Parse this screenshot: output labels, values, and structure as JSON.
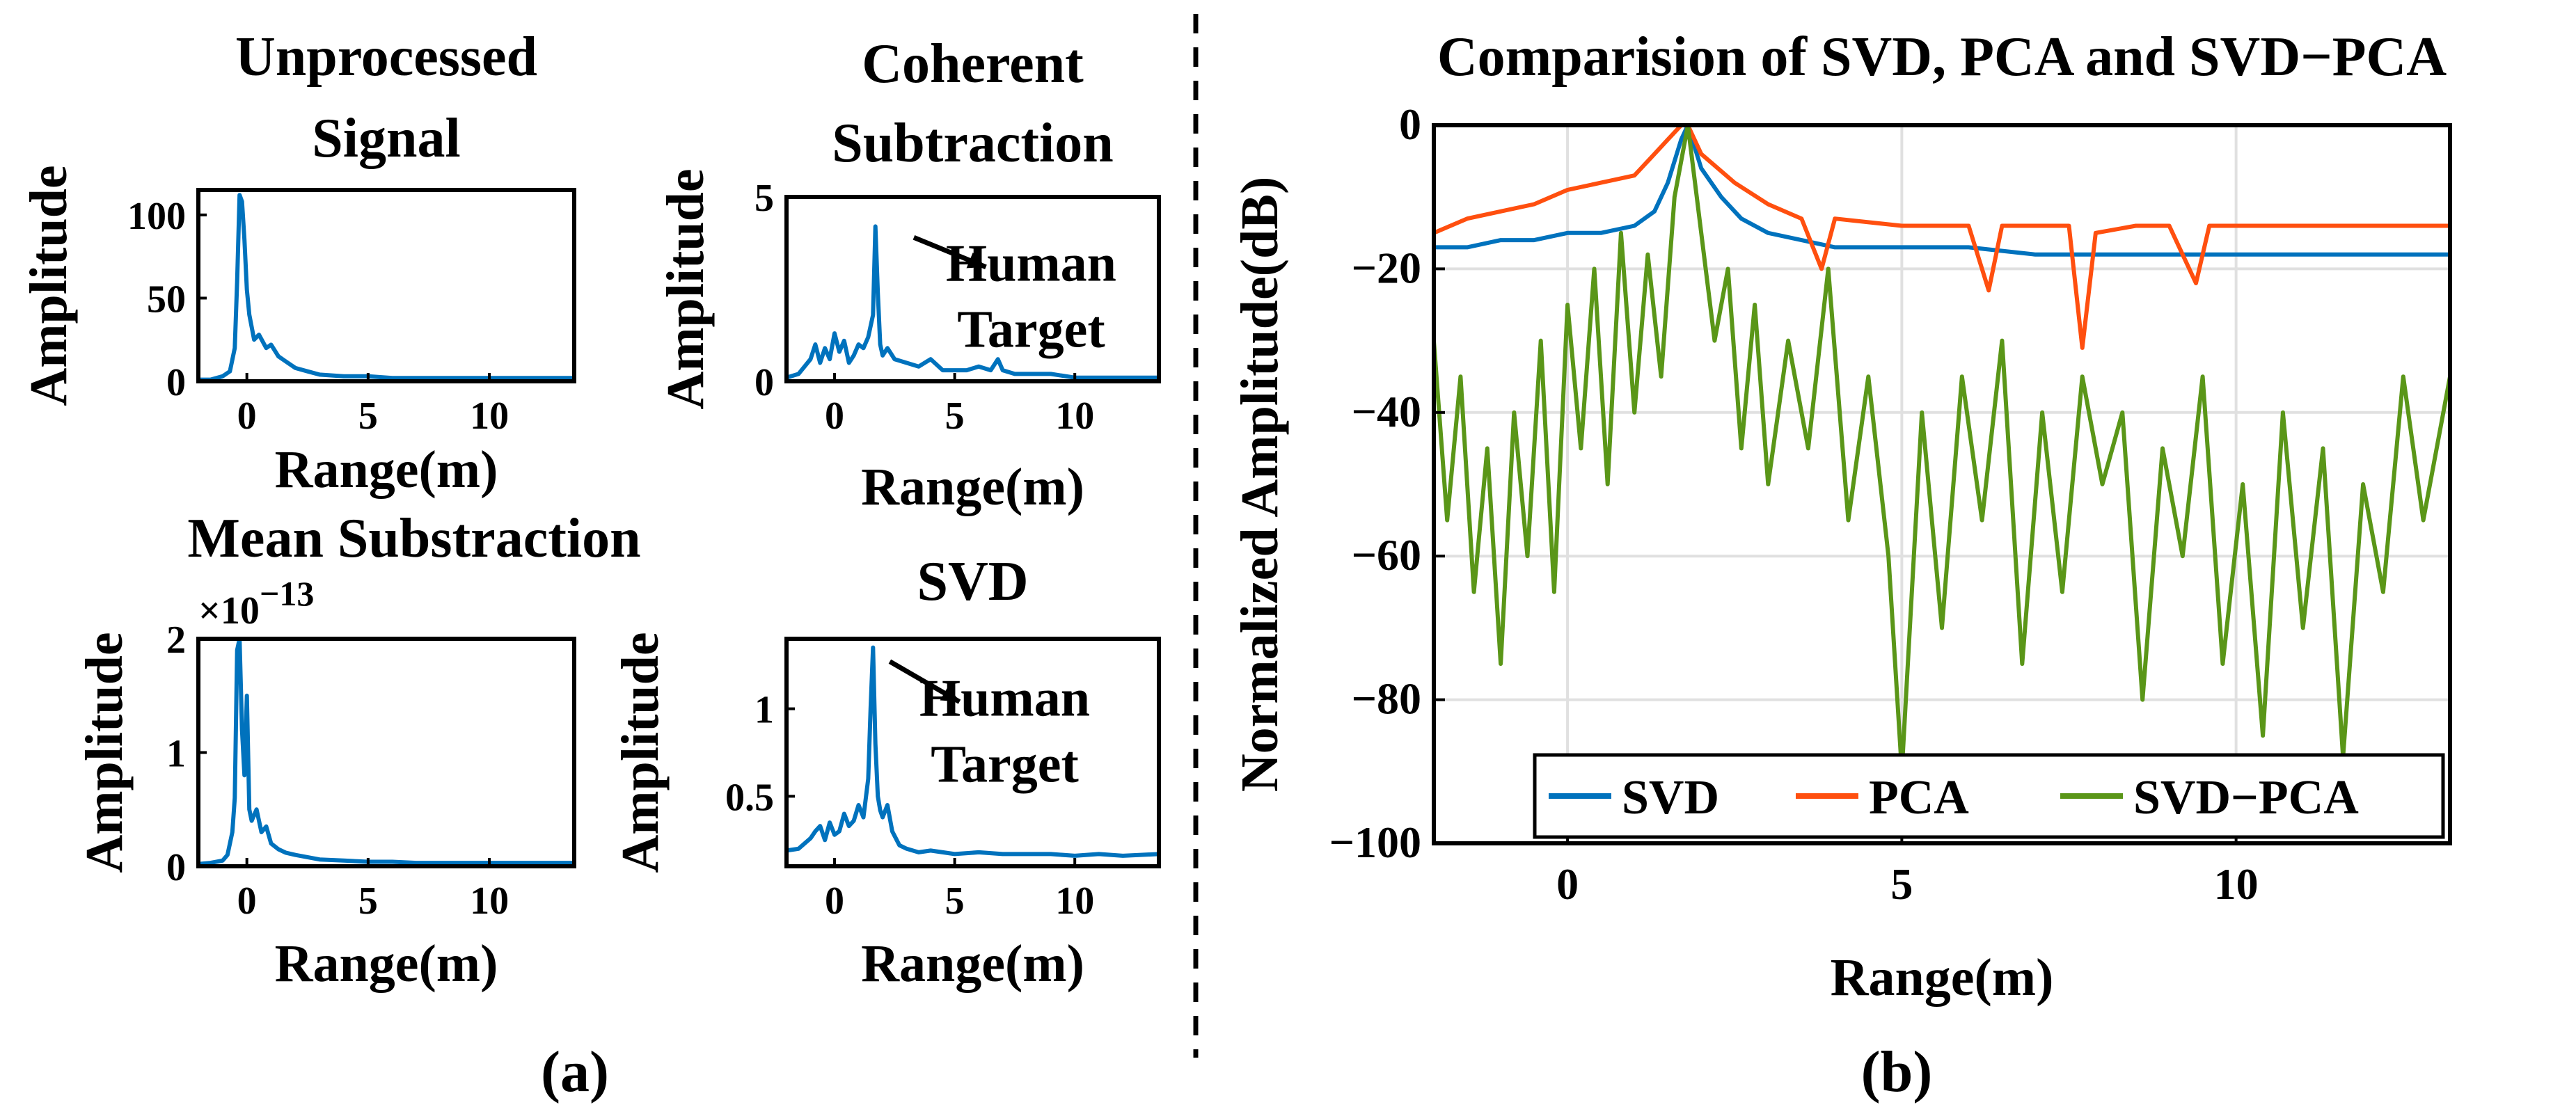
{
  "figure": {
    "panel_a_label": "(a)",
    "panel_b_label": "(b)"
  },
  "colors": {
    "blue": "#0072BD",
    "orange": "#FF4F0F",
    "green": "#5A9618",
    "grid": "#E0E0E0",
    "axis": "#000000"
  },
  "chart_data": [
    {
      "id": "unprocessed",
      "type": "line",
      "title_lines": [
        "Unprocessed",
        "Signal"
      ],
      "xlabel": "Range(m)",
      "ylabel": "Amplitude",
      "xlim": [
        -2,
        13.5
      ],
      "ylim": [
        0,
        115
      ],
      "xticks": [
        0,
        5,
        10
      ],
      "yticks": [
        0,
        50,
        100
      ],
      "exponent_label": "",
      "annotation": null,
      "series": [
        {
          "color": "#0072BD",
          "x": [
            -2,
            -1.5,
            -1,
            -0.7,
            -0.5,
            -0.4,
            -0.3,
            -0.2,
            -0.1,
            0,
            0.1,
            0.3,
            0.5,
            0.8,
            1,
            1.3,
            1.6,
            2,
            2.5,
            3,
            4,
            5,
            6,
            7,
            8,
            9,
            10,
            11,
            12,
            13.5
          ],
          "y": [
            1,
            1,
            3,
            6,
            20,
            60,
            112,
            108,
            85,
            55,
            40,
            25,
            28,
            20,
            22,
            15,
            12,
            8,
            6,
            4,
            3,
            3,
            2,
            2,
            2,
            2,
            2,
            2,
            2,
            2
          ]
        }
      ]
    },
    {
      "id": "coherent",
      "type": "line",
      "title_lines": [
        "Coherent",
        "Subtraction"
      ],
      "xlabel": "Range(m)",
      "ylabel": "Amplitude",
      "xlim": [
        -2,
        13.5
      ],
      "ylim": [
        0,
        5
      ],
      "xticks": [
        0,
        5,
        10
      ],
      "yticks": [
        0,
        5
      ],
      "exponent_label": "",
      "annotation": {
        "lines": [
          "Human",
          "Target"
        ],
        "arrow_from": [
          3.3,
          3.9
        ],
        "arrow_to": [
          6.3,
          3.1
        ]
      },
      "series": [
        {
          "color": "#0072BD",
          "x": [
            -2,
            -1.5,
            -1,
            -0.8,
            -0.6,
            -0.4,
            -0.2,
            0,
            0.2,
            0.4,
            0.6,
            0.8,
            1,
            1.2,
            1.4,
            1.6,
            1.7,
            1.8,
            1.9,
            2,
            2.2,
            2.5,
            3,
            3.5,
            4,
            4.5,
            5,
            5.5,
            6,
            6.5,
            6.8,
            7,
            7.5,
            8,
            9,
            10,
            11,
            12,
            13.5
          ],
          "y": [
            0.1,
            0.2,
            0.6,
            1.0,
            0.5,
            0.9,
            0.6,
            1.3,
            0.8,
            1.1,
            0.5,
            0.7,
            1.0,
            0.9,
            1.2,
            1.8,
            4.2,
            2.4,
            1.0,
            0.7,
            0.9,
            0.6,
            0.5,
            0.4,
            0.6,
            0.3,
            0.3,
            0.3,
            0.4,
            0.3,
            0.6,
            0.3,
            0.2,
            0.2,
            0.2,
            0.1,
            0.1,
            0.1,
            0.1
          ]
        }
      ]
    },
    {
      "id": "mean",
      "type": "line",
      "title_lines": [
        "Mean Substraction"
      ],
      "xlabel": "Range(m)",
      "ylabel": "Amplitude",
      "xlim": [
        -2,
        13.5
      ],
      "ylim": [
        0,
        2
      ],
      "xticks": [
        0,
        5,
        10
      ],
      "yticks": [
        0,
        1,
        2
      ],
      "exponent_base": "×10",
      "exponent_power": "−13",
      "annotation": null,
      "series": [
        {
          "color": "#0072BD",
          "x": [
            -2,
            -1.5,
            -1,
            -0.8,
            -0.6,
            -0.5,
            -0.4,
            -0.3,
            -0.2,
            -0.1,
            0,
            0.1,
            0.2,
            0.4,
            0.6,
            0.8,
            1,
            1.3,
            1.6,
            2,
            2.5,
            3,
            4,
            5,
            6,
            7,
            8,
            9,
            10,
            11,
            12,
            13.5
          ],
          "y": [
            0.02,
            0.03,
            0.05,
            0.1,
            0.3,
            0.6,
            1.9,
            2.0,
            1.2,
            0.8,
            1.5,
            0.5,
            0.4,
            0.5,
            0.3,
            0.35,
            0.2,
            0.15,
            0.12,
            0.1,
            0.08,
            0.06,
            0.05,
            0.04,
            0.04,
            0.03,
            0.03,
            0.03,
            0.03,
            0.03,
            0.03,
            0.03
          ]
        }
      ]
    },
    {
      "id": "svd-small",
      "type": "line",
      "title_lines": [
        "SVD"
      ],
      "xlabel": "Range(m)",
      "ylabel": "Amplitude",
      "xlim": [
        -2,
        13.5
      ],
      "ylim": [
        0.1,
        1.4
      ],
      "xticks": [
        0,
        5,
        10
      ],
      "yticks": [
        0.5,
        1
      ],
      "exponent_label": "",
      "annotation": {
        "lines": [
          "Human",
          "Target"
        ],
        "arrow_from": [
          2.3,
          1.27
        ],
        "arrow_to": [
          5.2,
          1.04
        ]
      },
      "series": [
        {
          "color": "#0072BD",
          "x": [
            -2,
            -1.5,
            -1,
            -0.8,
            -0.6,
            -0.4,
            -0.2,
            0,
            0.2,
            0.4,
            0.6,
            0.8,
            1,
            1.2,
            1.4,
            1.5,
            1.6,
            1.7,
            1.8,
            1.9,
            2,
            2.2,
            2.4,
            2.7,
            3,
            3.5,
            4,
            4.5,
            5,
            6,
            7,
            8,
            9,
            10,
            11,
            12,
            13.5
          ],
          "y": [
            0.19,
            0.2,
            0.26,
            0.3,
            0.33,
            0.25,
            0.35,
            0.28,
            0.3,
            0.4,
            0.33,
            0.36,
            0.45,
            0.38,
            0.6,
            1.0,
            1.35,
            0.8,
            0.5,
            0.42,
            0.38,
            0.45,
            0.3,
            0.22,
            0.2,
            0.18,
            0.19,
            0.18,
            0.17,
            0.18,
            0.17,
            0.17,
            0.17,
            0.16,
            0.17,
            0.16,
            0.17
          ]
        }
      ]
    },
    {
      "id": "comparison",
      "type": "line",
      "title": "Comparision of SVD, PCA and SVD−PCA",
      "xlabel": "Range(m)",
      "ylabel": "Normalized Amplitude(dB)",
      "xlim": [
        -2,
        13.2
      ],
      "ylim": [
        -100,
        0
      ],
      "xticks": [
        0,
        5,
        10
      ],
      "yticks": [
        0,
        -20,
        -40,
        -60,
        -80,
        -100
      ],
      "grid": true,
      "legend_position": "bottom-right",
      "series": [
        {
          "name": "SVD",
          "color": "#0072BD",
          "x": [
            -2,
            -1.5,
            -1,
            -0.5,
            0,
            0.5,
            1,
            1.3,
            1.5,
            1.7,
            1.8,
            2,
            2.3,
            2.6,
            3,
            3.5,
            4,
            5,
            6,
            7,
            8,
            9,
            10,
            11,
            12,
            13.2
          ],
          "y": [
            -17,
            -17,
            -16,
            -16,
            -15,
            -15,
            -14,
            -12,
            -8,
            -2,
            0,
            -6,
            -10,
            -13,
            -15,
            -16,
            -17,
            -17,
            -17,
            -18,
            -18,
            -18,
            -18,
            -18,
            -18,
            -18
          ]
        },
        {
          "name": "PCA",
          "color": "#FF4F0F",
          "x": [
            -2,
            -1.5,
            -1,
            -0.5,
            0,
            0.5,
            1,
            1.3,
            1.5,
            1.7,
            1.8,
            2,
            2.5,
            3,
            3.5,
            3.8,
            4,
            5,
            6,
            6.3,
            6.5,
            7,
            7.5,
            7.7,
            7.9,
            8.5,
            9,
            9.4,
            9.6,
            10,
            11,
            12,
            13.2
          ],
          "y": [
            -15,
            -13,
            -12,
            -11,
            -9,
            -8,
            -7,
            -4,
            -2,
            0,
            0,
            -4,
            -8,
            -11,
            -13,
            -20,
            -13,
            -14,
            -14,
            -23,
            -14,
            -14,
            -14,
            -31,
            -15,
            -14,
            -14,
            -22,
            -14,
            -14,
            -14,
            -14,
            -14
          ]
        },
        {
          "name": "SVD−PCA",
          "color": "#5A9618",
          "x": [
            -2,
            -1.8,
            -1.6,
            -1.4,
            -1.2,
            -1,
            -0.8,
            -0.6,
            -0.4,
            -0.2,
            0,
            0.2,
            0.4,
            0.6,
            0.8,
            1,
            1.2,
            1.4,
            1.6,
            1.7,
            1.8,
            2,
            2.2,
            2.4,
            2.6,
            2.8,
            3,
            3.3,
            3.6,
            3.9,
            4.2,
            4.5,
            4.8,
            5,
            5.3,
            5.6,
            5.9,
            6.2,
            6.5,
            6.8,
            7.1,
            7.4,
            7.7,
            8,
            8.3,
            8.6,
            8.9,
            9.2,
            9.5,
            9.8,
            10.1,
            10.4,
            10.7,
            11,
            11.3,
            11.6,
            11.9,
            12.2,
            12.5,
            12.8,
            13.2
          ],
          "y": [
            -30,
            -55,
            -35,
            -65,
            -45,
            -75,
            -40,
            -60,
            -30,
            -65,
            -25,
            -45,
            -20,
            -50,
            -15,
            -40,
            -18,
            -35,
            -10,
            -5,
            0,
            -15,
            -30,
            -20,
            -45,
            -25,
            -50,
            -30,
            -45,
            -20,
            -55,
            -35,
            -60,
            -90,
            -40,
            -70,
            -35,
            -55,
            -30,
            -75,
            -40,
            -65,
            -35,
            -50,
            -40,
            -80,
            -45,
            -60,
            -35,
            -75,
            -50,
            -85,
            -40,
            -70,
            -45,
            -88,
            -50,
            -65,
            -35,
            -55,
            -35
          ]
        }
      ]
    }
  ]
}
